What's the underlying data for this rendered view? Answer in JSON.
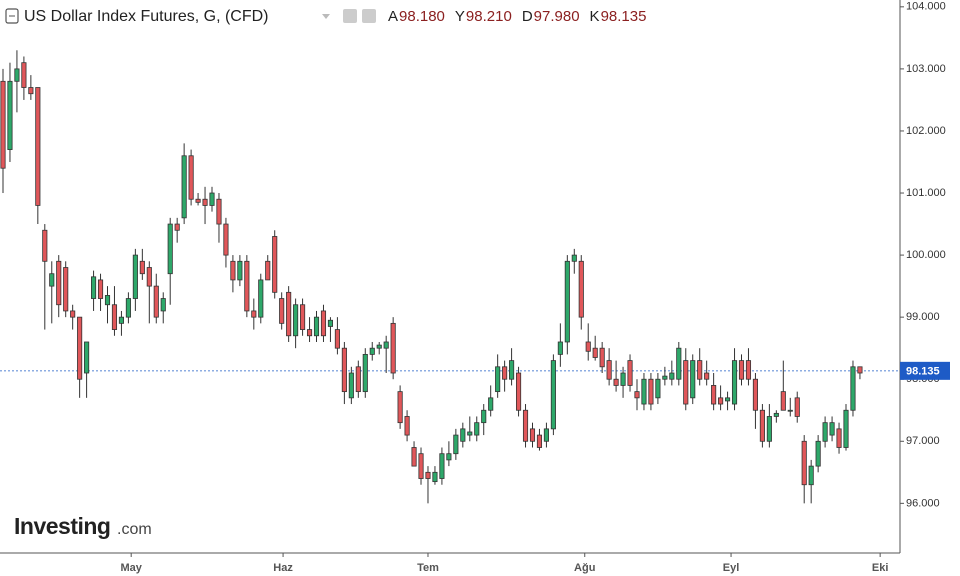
{
  "chart_data": {
    "type": "candlestick",
    "title": "US Dollar Index Futures, G, (CFD)",
    "ohlc_labels": [
      {
        "key": "A",
        "text": "98.180"
      },
      {
        "key": "Y",
        "text": "98.210"
      },
      {
        "key": "D",
        "text": "97.980"
      },
      {
        "key": "K",
        "text": "98.135"
      }
    ],
    "watermark": "Investing",
    "watermark_suffix": ".com",
    "up_color": "#2ea86a",
    "down_color": "#e0575a",
    "open": [
      102.8,
      101.7,
      102.8,
      103.1,
      102.7,
      102.7,
      100.4,
      99.5,
      99.9,
      99.8,
      99.1,
      99.0,
      98.1,
      99.3,
      99.6,
      99.2,
      99.2,
      98.9,
      99.0,
      99.3,
      99.9,
      99.8,
      99.5,
      99.1,
      99.7,
      100.5,
      100.6,
      101.6,
      100.9,
      100.9,
      100.8,
      100.9,
      100.5,
      99.9,
      99.6,
      99.9,
      99.1,
      99.0,
      99.9,
      100.3,
      99.3,
      99.4,
      98.7,
      99.2,
      98.8,
      98.7,
      99.1,
      98.85,
      98.8,
      98.5,
      97.7,
      98.2,
      97.8,
      98.4,
      98.5,
      98.5,
      98.9,
      97.8,
      97.4,
      96.9,
      96.8,
      96.5,
      96.35,
      96.4,
      96.7,
      96.8,
      97.0,
      97.1,
      97.1,
      97.3,
      97.5,
      97.8,
      98.2,
      98.0,
      98.1,
      97.5,
      97.2,
      97.1,
      97.0,
      97.2,
      98.4,
      98.6,
      99.9,
      99.9,
      98.6,
      98.5,
      98.5,
      98.3,
      98.0,
      97.9,
      98.3,
      97.8,
      97.6,
      98.0,
      97.7,
      98.0,
      98.0,
      98.0,
      98.3,
      97.7,
      98.3,
      98.1,
      97.9,
      97.7,
      97.65,
      97.6,
      98.3,
      98.3,
      98.0,
      97.5,
      97.0,
      97.4,
      97.8,
      97.5,
      97.7,
      97.0,
      96.3,
      96.6,
      97.0,
      97.1,
      97.2,
      96.9,
      97.5,
      98.2
    ],
    "high": [
      103.0,
      103.1,
      103.3,
      103.2,
      102.9,
      102.7,
      100.5,
      99.9,
      100.0,
      99.9,
      99.2,
      99.0,
      98.6,
      99.75,
      99.7,
      99.5,
      99.5,
      99.1,
      99.4,
      100.1,
      100.1,
      99.9,
      99.7,
      99.4,
      100.6,
      100.6,
      101.8,
      101.7,
      101.0,
      101.1,
      101.1,
      101.0,
      100.6,
      100.0,
      100.0,
      100.0,
      99.3,
      99.7,
      100.0,
      100.4,
      99.4,
      99.5,
      99.3,
      99.3,
      99.0,
      99.1,
      99.2,
      99.0,
      99.0,
      98.6,
      98.2,
      98.3,
      98.5,
      98.6,
      98.6,
      98.7,
      99.0,
      97.9,
      97.5,
      97.0,
      96.9,
      96.6,
      96.6,
      96.9,
      97.0,
      97.2,
      97.3,
      97.4,
      97.4,
      97.6,
      97.9,
      98.4,
      98.3,
      98.5,
      98.2,
      97.6,
      97.3,
      97.2,
      97.3,
      98.4,
      98.9,
      100.0,
      100.1,
      100.0,
      98.9,
      98.7,
      98.6,
      98.5,
      98.3,
      98.2,
      98.4,
      98.0,
      98.1,
      98.1,
      98.1,
      98.2,
      98.3,
      98.6,
      98.5,
      98.4,
      98.5,
      98.3,
      98.1,
      97.9,
      97.8,
      98.5,
      98.4,
      98.5,
      98.1,
      97.6,
      97.6,
      97.5,
      98.3,
      97.7,
      97.8,
      97.1,
      96.7,
      97.1,
      97.4,
      97.4,
      97.3,
      97.6,
      98.3,
      98.2
    ],
    "low": [
      101.0,
      101.5,
      102.3,
      102.5,
      102.5,
      100.5,
      98.8,
      98.9,
      99.0,
      99.0,
      98.8,
      97.7,
      97.7,
      99.1,
      99.1,
      98.9,
      98.7,
      98.7,
      98.9,
      99.1,
      99.6,
      98.9,
      98.9,
      98.9,
      99.2,
      100.2,
      100.5,
      100.8,
      100.8,
      100.5,
      100.7,
      100.2,
      99.8,
      99.4,
      99.5,
      99.0,
      98.8,
      98.9,
      99.6,
      99.3,
      98.8,
      98.6,
      98.5,
      98.7,
      98.6,
      98.6,
      98.6,
      98.6,
      98.4,
      97.6,
      97.6,
      97.7,
      97.7,
      98.3,
      98.4,
      98.1,
      98.0,
      97.2,
      97.0,
      96.6,
      96.3,
      96.0,
      96.3,
      96.3,
      96.6,
      96.7,
      96.9,
      97.0,
      97.0,
      97.1,
      97.4,
      97.7,
      97.8,
      97.9,
      97.4,
      96.9,
      96.9,
      96.85,
      96.9,
      97.1,
      98.2,
      98.4,
      99.7,
      98.8,
      98.3,
      98.3,
      98.1,
      97.9,
      97.8,
      97.7,
      97.8,
      97.5,
      97.5,
      97.5,
      97.6,
      97.9,
      97.9,
      97.9,
      97.5,
      97.6,
      97.9,
      97.9,
      97.5,
      97.5,
      97.5,
      97.5,
      97.9,
      97.9,
      97.2,
      96.9,
      96.9,
      97.3,
      97.5,
      97.4,
      97.3,
      96.0,
      96.0,
      96.5,
      96.9,
      97.0,
      96.8,
      96.85,
      97.4,
      98.0
    ],
    "close": [
      101.4,
      102.8,
      103.0,
      102.7,
      102.6,
      100.8,
      99.9,
      99.7,
      99.2,
      99.1,
      99.0,
      98.0,
      98.6,
      99.65,
      99.3,
      99.35,
      98.8,
      99.0,
      99.3,
      100.0,
      99.7,
      99.5,
      99.0,
      99.3,
      100.5,
      100.4,
      101.6,
      100.9,
      100.85,
      100.8,
      101.0,
      100.5,
      100.0,
      99.6,
      99.9,
      99.1,
      99.0,
      99.6,
      99.6,
      99.4,
      98.9,
      98.7,
      99.2,
      98.8,
      98.7,
      99.0,
      98.7,
      98.95,
      98.5,
      97.8,
      98.1,
      97.8,
      98.4,
      98.5,
      98.55,
      98.6,
      98.1,
      97.3,
      97.1,
      96.6,
      96.4,
      96.4,
      96.5,
      96.8,
      96.8,
      97.1,
      97.2,
      97.15,
      97.3,
      97.5,
      97.7,
      98.2,
      98.0,
      98.3,
      97.5,
      97.0,
      97.0,
      96.9,
      97.2,
      98.3,
      98.6,
      99.9,
      100.0,
      99.0,
      98.45,
      98.35,
      98.2,
      98.0,
      97.9,
      98.1,
      97.9,
      97.7,
      98.0,
      97.6,
      98.0,
      98.05,
      98.1,
      98.5,
      97.6,
      98.3,
      98.0,
      98.0,
      97.6,
      97.6,
      97.7,
      98.3,
      98.0,
      98.0,
      97.5,
      97.0,
      97.4,
      97.45,
      97.5,
      97.5,
      97.4,
      96.3,
      96.6,
      97.0,
      97.3,
      97.3,
      96.9,
      97.5,
      98.2,
      98.1
    ],
    "xlim": [
      -0.43,
      128.75
    ],
    "xticks": [
      {
        "value": 18.4,
        "label": "May"
      },
      {
        "value": 40.2,
        "label": "Haz"
      },
      {
        "value": 61.0,
        "label": "Tem"
      },
      {
        "value": 83.5,
        "label": "Ağu"
      },
      {
        "value": 104.5,
        "label": "Eyl"
      },
      {
        "value": 125.9,
        "label": "Eki"
      }
    ],
    "ylim": [
      95.2,
      104.11
    ],
    "yticks": [
      {
        "value": 96,
        "label": "96.000"
      },
      {
        "value": 97,
        "label": "97.000"
      },
      {
        "value": 98,
        "label": "98.000"
      },
      {
        "value": 99,
        "label": "99.000"
      },
      {
        "value": 100,
        "label": "100.000"
      },
      {
        "value": 101,
        "label": "101.000"
      },
      {
        "value": 102,
        "label": "102.000"
      },
      {
        "value": 103,
        "label": "103.000"
      },
      {
        "value": 104,
        "label": "104.000"
      }
    ],
    "last_price": {
      "value": 98.135,
      "label": "98.135"
    },
    "last_price_color": "#1e5bc6"
  }
}
